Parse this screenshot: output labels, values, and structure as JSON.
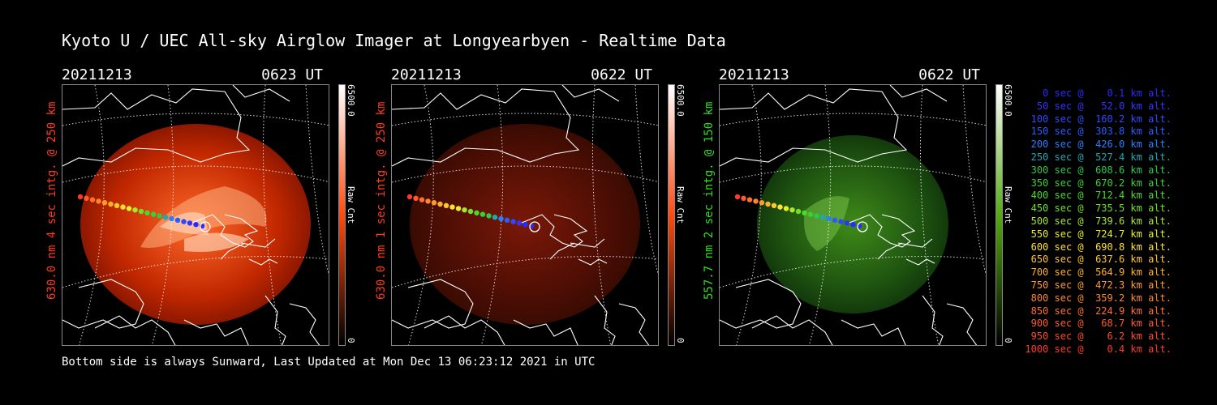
{
  "title": "Kyoto U / UEC All-sky Airglow Imager at Longyearbyen - Realtime Data",
  "footer": "Bottom side is always Sunward, Last Updated at Mon Dec 13 06:23:12 2021 in UTC",
  "panels": [
    {
      "date": "20211213",
      "time": "0623 UT",
      "ylabel": "630.0 nm  4 sec intg. @ 250 km",
      "ylabel_color": "#ff3b1e",
      "cbar_max": "6500.0",
      "cbar_min": "0",
      "cbar_label": "Raw Cnt",
      "cbar_top": "#ffffff",
      "cbar_mid": "#ff4a10",
      "cbar_bottom": "#000000"
    },
    {
      "date": "20211213",
      "time": "0622 UT",
      "ylabel": "630.0 nm  1 sec intg. @ 250 km",
      "ylabel_color": "#ff3b1e",
      "cbar_max": "6500.0",
      "cbar_min": "0",
      "cbar_label": "Raw Cnt",
      "cbar_top": "#ffffff",
      "cbar_mid": "#ff4a10",
      "cbar_bottom": "#000000"
    },
    {
      "date": "20211213",
      "time": "0622 UT",
      "ylabel": "557.7 nm  2 sec intg. @ 150 km",
      "ylabel_color": "#33dd22",
      "cbar_max": "6500.0",
      "cbar_min": "0",
      "cbar_label": "Raw Cnt",
      "cbar_top": "#ffffff",
      "cbar_mid": "#55aa11",
      "cbar_bottom": "#000000"
    }
  ],
  "legend": [
    {
      "text": "0 sec @    0.1 km alt.",
      "color": "#2a2aff"
    },
    {
      "text": "50 sec @   52.0 km alt.",
      "color": "#3333ff"
    },
    {
      "text": "100 sec @  160.2 km alt.",
      "color": "#2d4aff"
    },
    {
      "text": "150 sec @  303.8 km alt.",
      "color": "#2a5cff"
    },
    {
      "text": "200 sec @  426.0 km alt.",
      "color": "#2a7fff"
    },
    {
      "text": "250 sec @  527.4 km alt.",
      "color": "#1fa8b4"
    },
    {
      "text": "300 sec @  608.6 km alt.",
      "color": "#2ec84a"
    },
    {
      "text": "350 sec @  670.2 km alt.",
      "color": "#39d033"
    },
    {
      "text": "400 sec @  712.4 km alt.",
      "color": "#4ad92b"
    },
    {
      "text": "450 sec @  735.5 km alt.",
      "color": "#6ee02a"
    },
    {
      "text": "500 sec @  739.6 km alt.",
      "color": "#a6e82a"
    },
    {
      "text": "550 sec @  724.7 km alt.",
      "color": "#e6ee2a"
    },
    {
      "text": "600 sec @  690.8 km alt.",
      "color": "#ffe22a"
    },
    {
      "text": "650 sec @  637.6 km alt.",
      "color": "#ffc82a"
    },
    {
      "text": "700 sec @  564.9 km alt.",
      "color": "#ffb02a"
    },
    {
      "text": "750 sec @  472.3 km alt.",
      "color": "#ff9a2a"
    },
    {
      "text": "800 sec @  359.2 km alt.",
      "color": "#ff862a"
    },
    {
      "text": "850 sec @  224.9 km alt.",
      "color": "#ff702a"
    },
    {
      "text": "900 sec @   68.7 km alt.",
      "color": "#ff5a2a"
    },
    {
      "text": "950 sec @    6.2 km alt.",
      "color": "#ff4a2a"
    },
    {
      "text": "1000 sec @    0.4 km alt.",
      "color": "#ff3a2a"
    }
  ]
}
